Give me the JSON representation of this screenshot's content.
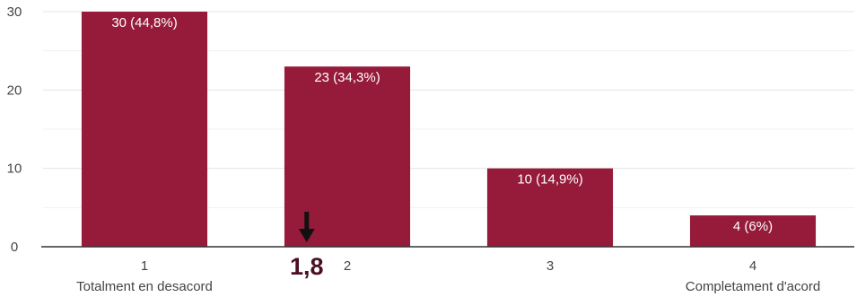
{
  "chart_data": {
    "type": "bar",
    "title": "",
    "xlabel": "",
    "ylabel": "",
    "categories": [
      "1",
      "2",
      "3",
      "4"
    ],
    "category_sublabels": [
      "Totalment en desacord",
      "",
      "",
      "Completament d'acord"
    ],
    "values": [
      30,
      23,
      10,
      4
    ],
    "data_labels": [
      "30 (44,8%)",
      "23 (34,3%)",
      "10 (14,9%)",
      "4 (6%)"
    ],
    "ylim": [
      0,
      30
    ],
    "yticks": [
      0,
      10,
      20,
      30
    ],
    "grid": true,
    "legend": "none",
    "bar_color": "#961b3a",
    "annotation": {
      "label": "1,8",
      "value": 1.8,
      "marker": "down-arrow"
    }
  }
}
